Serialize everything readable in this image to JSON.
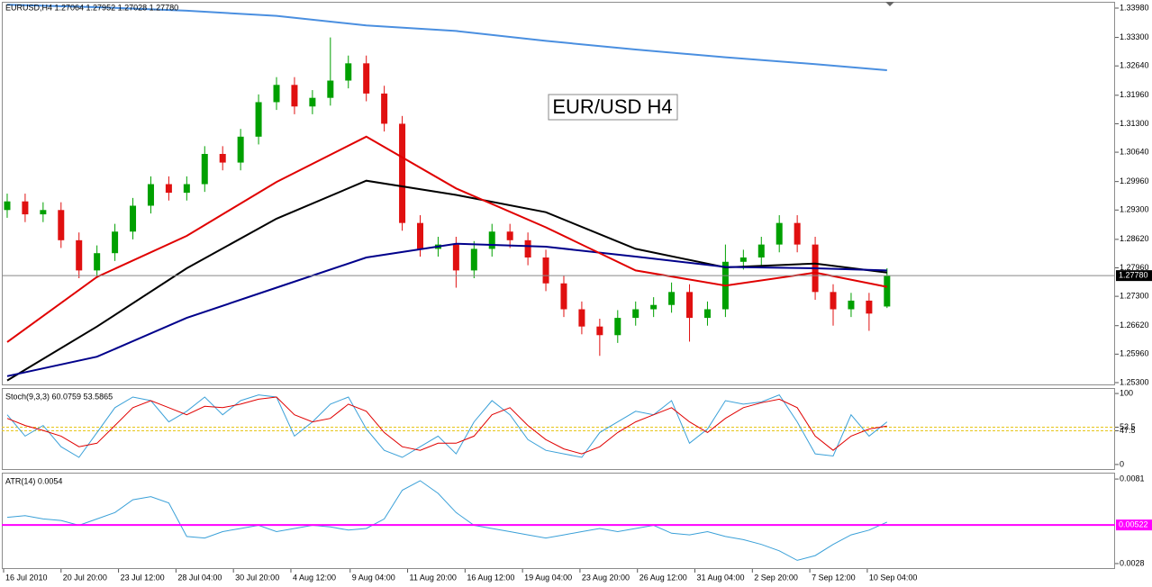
{
  "chart_data": [
    {
      "type": "candlestick",
      "title": "EURUSD,H4  1.27064 1.27952 1.27028 1.27780",
      "annotation": "EUR/USD H4",
      "up_color": "#00a000",
      "down_color": "#e01010",
      "xlim": [
        -0.3,
        61.7
      ],
      "ylim": [
        1.25237,
        1.34126
      ],
      "yticks": [
        {
          "value": 1.3398,
          "label": "1.33980"
        },
        {
          "value": 1.333,
          "label": "1.33300"
        },
        {
          "value": 1.3264,
          "label": "1.32640"
        },
        {
          "value": 1.3196,
          "label": "1.31960"
        },
        {
          "value": 1.313,
          "label": "1.31300"
        },
        {
          "value": 1.3064,
          "label": "1.30640"
        },
        {
          "value": 1.2996,
          "label": "1.29960"
        },
        {
          "value": 1.293,
          "label": "1.29300"
        },
        {
          "value": 1.2862,
          "label": "1.28620"
        },
        {
          "value": 1.2796,
          "label": "1.27960"
        },
        {
          "value": 1.273,
          "label": "1.27300"
        },
        {
          "value": 1.2662,
          "label": "1.26620"
        },
        {
          "value": 1.2596,
          "label": "1.25960"
        },
        {
          "value": 1.253,
          "label": "1.25300"
        }
      ],
      "current_price": {
        "value": 1.2778,
        "label": "1.27780"
      },
      "open": [
        1.293,
        1.295,
        1.292,
        1.293,
        1.286,
        1.279,
        1.283,
        1.288,
        1.294,
        1.299,
        1.297,
        1.299,
        1.306,
        1.304,
        1.31,
        1.318,
        1.322,
        1.317,
        1.319,
        1.323,
        1.327,
        1.32,
        1.313,
        1.29,
        1.284,
        1.285,
        1.279,
        1.284,
        1.288,
        1.286,
        1.282,
        1.276,
        1.27,
        1.266,
        1.264,
        1.268,
        1.27,
        1.271,
        1.274,
        1.268,
        1.27,
        1.281,
        1.282,
        1.285,
        1.29,
        1.285,
        1.274,
        1.27,
        1.272,
        1.27064
      ],
      "high": [
        1.2968,
        1.2968,
        1.2948,
        1.2948,
        1.2878,
        1.2848,
        1.2898,
        1.2958,
        1.3008,
        1.3008,
        1.3008,
        1.3078,
        1.3078,
        1.3118,
        1.3198,
        1.3238,
        1.3238,
        1.3208,
        1.333,
        1.3288,
        1.3288,
        1.3218,
        1.3148,
        1.2918,
        1.2868,
        1.2868,
        1.2858,
        1.2898,
        1.2898,
        1.2878,
        1.2838,
        1.2778,
        1.2718,
        1.2678,
        1.2698,
        1.2718,
        1.2728,
        1.2762,
        1.2758,
        1.2718,
        1.285,
        1.2838,
        1.2868,
        1.2918,
        1.2918,
        1.2868,
        1.2758,
        1.2738,
        1.2738,
        1.27952
      ],
      "low": [
        1.2912,
        1.2902,
        1.2902,
        1.2842,
        1.2772,
        1.2772,
        1.2812,
        1.2862,
        1.2922,
        1.2952,
        1.2952,
        1.2972,
        1.3022,
        1.3022,
        1.3082,
        1.3162,
        1.3152,
        1.3152,
        1.3172,
        1.3212,
        1.3182,
        1.3112,
        1.2882,
        1.2822,
        1.2822,
        1.275,
        1.2772,
        1.2822,
        1.2842,
        1.2802,
        1.2742,
        1.2682,
        1.2642,
        1.2592,
        1.2622,
        1.2662,
        1.2682,
        1.2692,
        1.2625,
        1.2662,
        1.2682,
        1.2792,
        1.2802,
        1.2832,
        1.2832,
        1.2722,
        1.2662,
        1.2682,
        1.265,
        1.27028
      ],
      "close": [
        1.295,
        1.292,
        1.293,
        1.286,
        1.279,
        1.283,
        1.288,
        1.294,
        1.299,
        1.297,
        1.299,
        1.306,
        1.304,
        1.31,
        1.318,
        1.322,
        1.317,
        1.319,
        1.323,
        1.327,
        1.32,
        1.313,
        1.29,
        1.284,
        1.285,
        1.279,
        1.284,
        1.288,
        1.286,
        1.282,
        1.276,
        1.27,
        1.266,
        1.264,
        1.268,
        1.27,
        1.271,
        1.274,
        1.268,
        1.27,
        1.281,
        1.282,
        1.285,
        1.29,
        1.285,
        1.274,
        1.27,
        1.272,
        1.269,
        1.2778
      ],
      "series": [
        {
          "color": "#4a8fe0",
          "x": [
            0,
            5,
            10,
            15,
            20,
            25,
            30,
            35,
            40,
            45,
            49
          ],
          "values": [
            1.3406,
            1.34,
            1.3392,
            1.338,
            1.3358,
            1.3345,
            1.3322,
            1.3302,
            1.3284,
            1.3268,
            1.3254
          ]
        },
        {
          "color": "#000000",
          "x": [
            0,
            5,
            10,
            15,
            20,
            25,
            30,
            35,
            40,
            45,
            49
          ],
          "values": [
            1.2535,
            1.266,
            1.2795,
            1.291,
            1.2998,
            1.2965,
            1.2925,
            1.284,
            1.2797,
            1.2806,
            1.2785
          ]
        },
        {
          "color": "#00008b",
          "x": [
            0,
            5,
            10,
            15,
            20,
            25,
            30,
            35,
            40,
            45,
            49
          ],
          "values": [
            1.2545,
            1.259,
            1.268,
            1.275,
            1.282,
            1.2852,
            1.2845,
            1.2822,
            1.2798,
            1.2795,
            1.279
          ]
        },
        {
          "color": "#e00000",
          "x": [
            0,
            5,
            10,
            15,
            20,
            25,
            30,
            35,
            40,
            45,
            49
          ],
          "values": [
            1.2624,
            1.2775,
            1.287,
            1.2995,
            1.31,
            1.298,
            1.289,
            1.279,
            1.2755,
            1.2785,
            1.2752
          ]
        }
      ]
    },
    {
      "type": "line",
      "title": "Stoch(9,3,3) 60.0759 53.5865",
      "xlim": [
        -0.3,
        61.7
      ],
      "ylim": [
        -7.7,
        107.7
      ],
      "yticks": [
        100,
        52.5,
        47.5,
        0
      ],
      "levels": [
        52.5,
        47.5
      ],
      "level_color": "#e6c619",
      "series": [
        {
          "color": "#3aa0d8",
          "values": [
            70,
            40,
            55,
            25,
            10,
            45,
            80,
            95,
            90,
            60,
            75,
            95,
            70,
            90,
            98,
            95,
            40,
            60,
            85,
            95,
            50,
            20,
            10,
            25,
            40,
            15,
            60,
            90,
            70,
            35,
            20,
            15,
            10,
            45,
            60,
            75,
            70,
            90,
            30,
            50,
            90,
            85,
            88,
            98,
            60,
            15,
            12,
            70,
            40,
            60
          ]
        },
        {
          "color": "#e00000",
          "values": [
            65,
            55,
            48,
            40,
            25,
            30,
            55,
            80,
            90,
            80,
            70,
            82,
            80,
            85,
            92,
            95,
            70,
            60,
            65,
            85,
            75,
            45,
            25,
            20,
            30,
            30,
            40,
            70,
            80,
            55,
            35,
            22,
            15,
            25,
            45,
            60,
            70,
            80,
            60,
            45,
            65,
            80,
            87,
            92,
            80,
            40,
            20,
            40,
            50,
            54
          ]
        }
      ]
    },
    {
      "type": "line",
      "title": "ATR(14) 0.0054",
      "xlim": [
        -0.3,
        61.7
      ],
      "ylim": [
        0.00246,
        0.0085
      ],
      "yticks": [
        0.0081,
        0.0028
      ],
      "level": {
        "value": 0.00522,
        "label": "0.00522",
        "color": "#ff00ff"
      },
      "xticks": [
        {
          "value": -0.2,
          "label": "16 Jul 2010"
        },
        {
          "value": 3.0,
          "label": "20 Jul 20:00"
        },
        {
          "value": 6.2,
          "label": "23 Jul 12:00"
        },
        {
          "value": 9.4,
          "label": "28 Jul 04:00"
        },
        {
          "value": 12.6,
          "label": "30 Jul 20:00"
        },
        {
          "value": 15.8,
          "label": "4 Aug 12:00"
        },
        {
          "value": 19.1,
          "label": "9 Aug 04:00"
        },
        {
          "value": 22.3,
          "label": "11 Aug 20:00"
        },
        {
          "value": 25.5,
          "label": "16 Aug 12:00"
        },
        {
          "value": 28.7,
          "label": "19 Aug 04:00"
        },
        {
          "value": 31.9,
          "label": "23 Aug 20:00"
        },
        {
          "value": 35.1,
          "label": "26 Aug 12:00"
        },
        {
          "value": 38.3,
          "label": "31 Aug 04:00"
        },
        {
          "value": 41.5,
          "label": "2 Sep 20:00"
        },
        {
          "value": 44.7,
          "label": "7 Sep 12:00"
        },
        {
          "value": 47.9,
          "label": "10 Sep 04:00"
        }
      ],
      "series": [
        {
          "color": "#3aa0d8",
          "values": [
            0.0057,
            0.0058,
            0.0056,
            0.0055,
            0.0052,
            0.0056,
            0.006,
            0.0068,
            0.007,
            0.0066,
            0.0045,
            0.0044,
            0.0048,
            0.005,
            0.0052,
            0.0048,
            0.005,
            0.0052,
            0.0051,
            0.0049,
            0.005,
            0.0056,
            0.0074,
            0.008,
            0.0072,
            0.006,
            0.0052,
            0.005,
            0.0048,
            0.0046,
            0.0044,
            0.0046,
            0.0048,
            0.005,
            0.0048,
            0.005,
            0.0052,
            0.0047,
            0.0046,
            0.0048,
            0.0045,
            0.0043,
            0.004,
            0.0036,
            0.003,
            0.0033,
            0.004,
            0.0046,
            0.0049,
            0.0054
          ]
        }
      ]
    }
  ]
}
